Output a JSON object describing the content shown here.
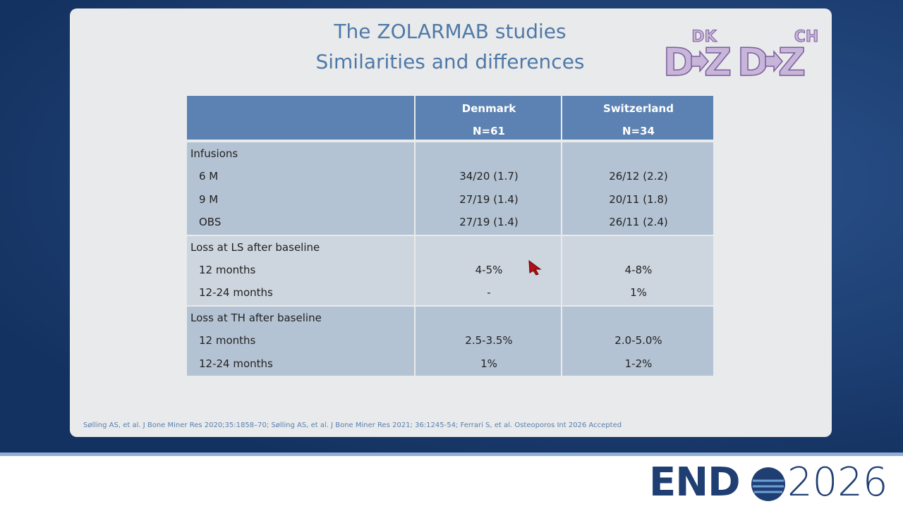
{
  "slide": {
    "title_lines": [
      "The ZOLARMAB studies",
      "Similarities and differences"
    ],
    "logos": [
      {
        "super": "DK",
        "left": "D",
        "right": "Z"
      },
      {
        "super": "CH",
        "left": "D",
        "right": "Z"
      }
    ],
    "table": {
      "columns": [
        {
          "name": "Denmark",
          "n": "N=61"
        },
        {
          "name": "Switzerland",
          "n": "N=34"
        }
      ],
      "groups": [
        {
          "label": "Infusions",
          "rows": [
            {
              "label": "6 M",
              "values": [
                "34/20 (1.7)",
                "26/12 (2.2)"
              ]
            },
            {
              "label": "9 M",
              "values": [
                "27/19 (1.4)",
                "20/11 (1.8)"
              ]
            },
            {
              "label": "OBS",
              "values": [
                "27/19 (1.4)",
                "26/11 (2.4)"
              ]
            }
          ]
        },
        {
          "label": "Loss at LS after baseline",
          "rows": [
            {
              "label": "12 months",
              "values": [
                "4-5%",
                "4-8%"
              ]
            },
            {
              "label": "12-24 months",
              "values": [
                "-",
                "1%"
              ]
            }
          ]
        },
        {
          "label": "Loss at TH after baseline",
          "rows": [
            {
              "label": "12 months",
              "values": [
                "2.5-3.5%",
                "2.0-5.0%"
              ]
            },
            {
              "label": "12-24 months",
              "values": [
                "1%",
                "1-2%"
              ]
            }
          ]
        }
      ]
    },
    "citation": "Sølling AS, et al. J Bone Miner Res 2020;35:1858–70; Sølling AS, et al. J Bone Miner Res 2021; 36:1245-54; Ferrari S, et al. Osteoporos Int 2026 Accepted"
  },
  "brand": {
    "left": "END",
    "right": "2026"
  }
}
